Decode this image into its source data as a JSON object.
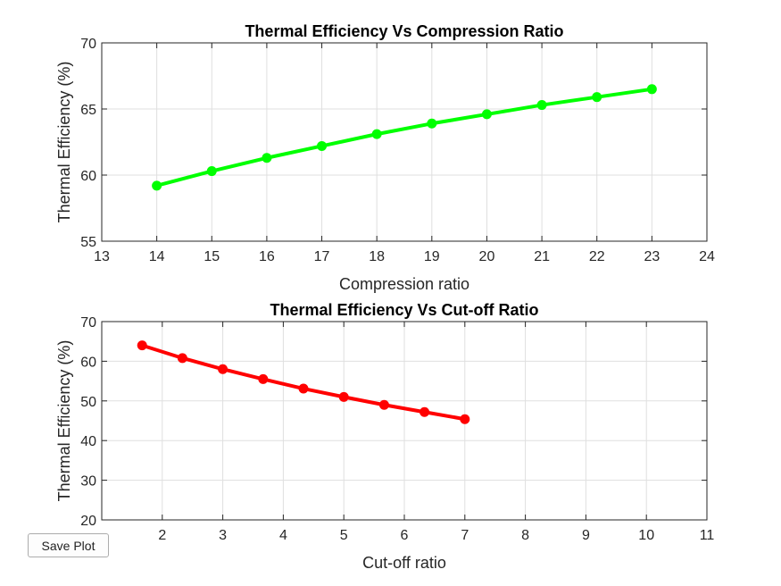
{
  "save_button": {
    "label": "Save Plot"
  },
  "chart_data": [
    {
      "type": "line",
      "title": "Thermal Efficiency Vs Compression Ratio",
      "xlabel": "Compression ratio",
      "ylabel": "Thermal Efficiency (%)",
      "xlim": [
        13,
        24
      ],
      "ylim": [
        55,
        70
      ],
      "xticks": [
        13,
        14,
        15,
        16,
        17,
        18,
        19,
        20,
        21,
        22,
        23,
        24
      ],
      "yticks": [
        55,
        60,
        65,
        70
      ],
      "grid": true,
      "series": [
        {
          "color": "#00ff00",
          "marker": "circle",
          "x": [
            14,
            15,
            16,
            17,
            18,
            19,
            20,
            21,
            22,
            23
          ],
          "y": [
            59.2,
            60.3,
            61.3,
            62.2,
            63.1,
            63.9,
            64.6,
            65.3,
            65.9,
            66.5
          ]
        }
      ]
    },
    {
      "type": "line",
      "title": "Thermal Efficiency Vs Cut-off Ratio",
      "xlabel": "Cut-off ratio",
      "ylabel": "Thermal Efficiency (%)",
      "xlim": [
        1.0,
        11
      ],
      "ylim": [
        20,
        70
      ],
      "xticks": [
        2,
        3,
        4,
        5,
        6,
        7,
        8,
        9,
        10,
        11
      ],
      "yticks": [
        20,
        30,
        40,
        50,
        60,
        70
      ],
      "grid": true,
      "series": [
        {
          "color": "#ff0000",
          "marker": "circle",
          "x": [
            1.667,
            2.333,
            3.0,
            3.667,
            4.333,
            5.0,
            5.667,
            6.333,
            7.0
          ],
          "y": [
            64.0,
            60.8,
            58.0,
            55.5,
            53.1,
            51.0,
            49.0,
            47.2,
            45.4
          ]
        }
      ]
    }
  ]
}
